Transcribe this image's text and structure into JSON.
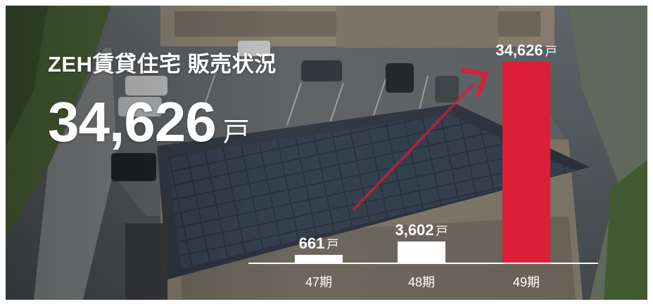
{
  "header": {
    "title": "ZEH賃貸住宅 販売状況",
    "total_value": "34,626",
    "total_unit": "戸"
  },
  "chart_data": {
    "type": "bar",
    "title": "",
    "xlabel": "",
    "ylabel": "",
    "unit": "戸",
    "categories": [
      "47期",
      "48期",
      "49期"
    ],
    "series": [
      {
        "values": [
          661,
          3602,
          34626
        ]
      }
    ],
    "value_labels": [
      "661",
      "3,602",
      "34,626"
    ],
    "bar_colors": [
      "#ffffff",
      "#ffffff",
      "#dc1e36"
    ],
    "ylim": [
      0,
      34626
    ],
    "grid": false,
    "legend": "none",
    "trend_arrow": true
  },
  "colors": {
    "accent": "#dc1e36",
    "text": "#ffffff"
  }
}
